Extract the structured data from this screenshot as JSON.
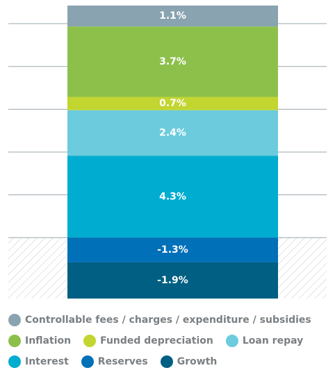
{
  "chart_data": {
    "type": "stacked_bar",
    "series": [
      {
        "name": "Controllable fees / charges / expenditure / subsidies",
        "color": "#8aa3b1",
        "values": [
          1.1
        ],
        "value_labels": [
          "1.1%"
        ]
      },
      {
        "name": "Inflation",
        "color": "#8cc04b",
        "values": [
          3.7
        ],
        "value_labels": [
          "3.7%"
        ]
      },
      {
        "name": "Funded depreciation",
        "color": "#c2d530",
        "values": [
          0.7
        ],
        "value_labels": [
          "0.7%"
        ]
      },
      {
        "name": "Loan repay",
        "color": "#6ccbdc",
        "values": [
          2.4
        ],
        "value_labels": [
          "2.4%"
        ]
      },
      {
        "name": "Interest",
        "color": "#00acd0",
        "values": [
          4.3
        ],
        "value_labels": [
          "4.3%"
        ]
      },
      {
        "name": "Reserves",
        "color": "#0070b8",
        "values": [
          -1.3
        ],
        "value_labels": [
          "-1.3%"
        ]
      },
      {
        "name": "Growth",
        "color": "#005f82",
        "values": [
          -1.9
        ],
        "value_labels": [
          "-1.9%"
        ]
      }
    ],
    "ylim": [
      -3.2,
      12.2
    ],
    "yticks": [
      0,
      2.25,
      4.5,
      6.75,
      9,
      11.25
    ],
    "grid": true
  }
}
